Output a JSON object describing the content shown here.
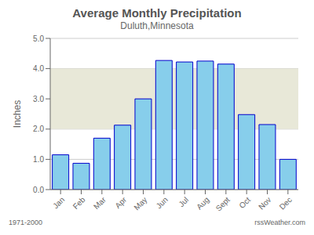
{
  "chart_data": {
    "type": "bar",
    "title": "Average Monthly Precipitation",
    "subtitle": "Duluth,Minnesota",
    "ylabel": "Inches",
    "categories": [
      "Jan",
      "Feb",
      "Mar",
      "Apr",
      "May",
      "Jun",
      "Jul",
      "Aug",
      "Sept",
      "Oct",
      "Nov",
      "Dec"
    ],
    "values": [
      1.15,
      0.87,
      1.7,
      2.13,
      3.0,
      4.27,
      4.22,
      4.25,
      4.15,
      2.48,
      2.15,
      1.0
    ],
    "color": "#87CEEB",
    "edge_color": "#0000CC",
    "ylim": [
      0.0,
      5.0
    ],
    "yticks": [
      {
        "value": 0.0,
        "label": "0.0"
      },
      {
        "value": 1.0,
        "label": "1.0"
      },
      {
        "value": 2.0,
        "label": "2.0"
      },
      {
        "value": 3.0,
        "label": "3.0"
      },
      {
        "value": 4.0,
        "label": "4.0"
      },
      {
        "value": 5.0,
        "label": "5.0"
      }
    ],
    "grid": true,
    "band": {
      "y": [
        2.0,
        4.0
      ],
      "color": "#E8E8D8"
    },
    "annotations": [
      "1971-2000",
      "rssWeather.com"
    ]
  }
}
